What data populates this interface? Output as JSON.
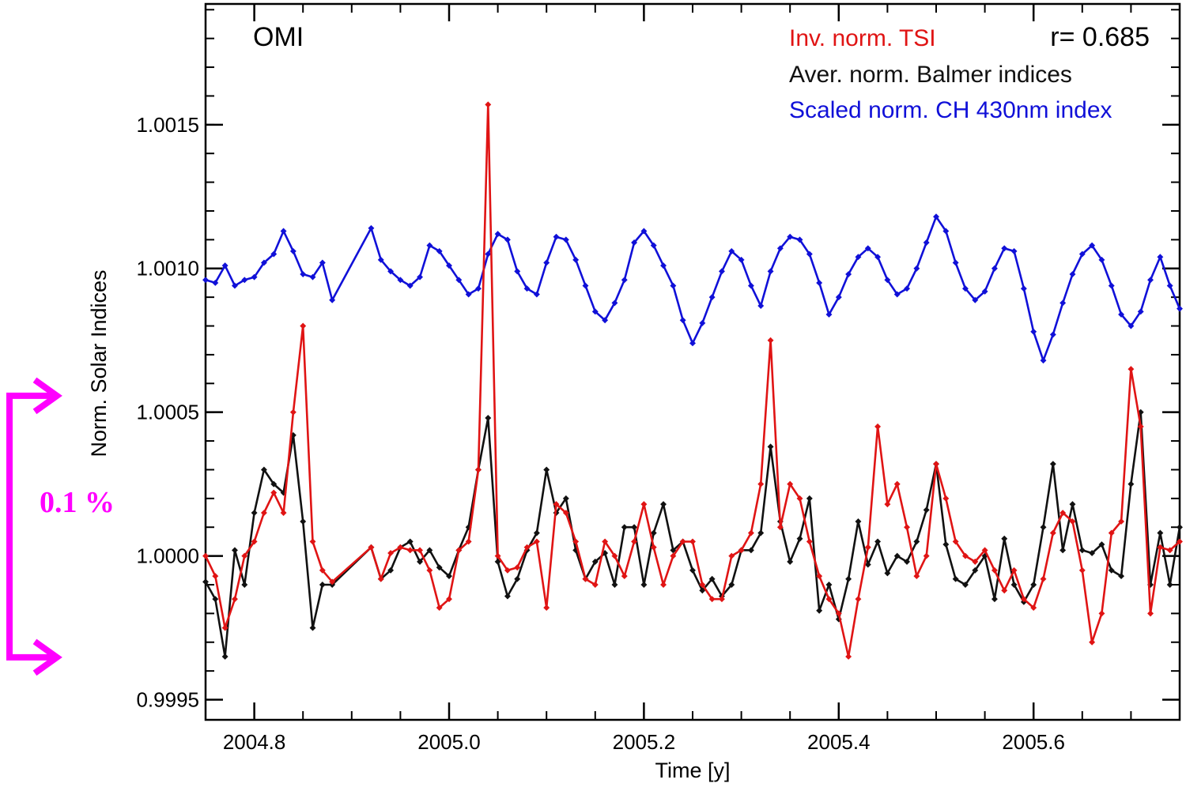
{
  "chart_data": {
    "type": "line",
    "panel_label": "OMI",
    "xlabel": "Time [y]",
    "ylabel": "Norm. Solar Indices",
    "xlim": [
      2004.75,
      2005.75
    ],
    "ylim": [
      0.99943,
      1.00192
    ],
    "x_ticks": [
      2004.8,
      2005.0,
      2005.2,
      2005.4,
      2005.6
    ],
    "x_tick_labels": [
      "2004.8",
      "2005.0",
      "2005.2",
      "2005.4",
      "2005.6"
    ],
    "y_ticks": [
      0.9995,
      1.0,
      1.0005,
      1.001,
      1.0015
    ],
    "y_tick_labels": [
      "0.9995",
      "1.0000",
      "1.0005",
      "1.0010",
      "1.0015"
    ],
    "correlation_label": "r=  0.685",
    "annotation": {
      "text": "0.1 %",
      "color": "#ff00ff",
      "y_top": 1.00059,
      "y_bottom": 0.99962
    },
    "series": [
      {
        "name": "Scaled norm. CH 430nm index",
        "color": "#1010d8",
        "x": [
          2004.75,
          2004.76,
          2004.77,
          2004.78,
          2004.79,
          2004.8,
          2004.81,
          2004.82,
          2004.83,
          2004.84,
          2004.85,
          2004.86,
          2004.87,
          2004.88,
          2004.92,
          2004.93,
          2004.94,
          2004.95,
          2004.96,
          2004.97,
          2004.98,
          2004.99,
          2005.0,
          2005.01,
          2005.02,
          2005.03,
          2005.04,
          2005.05,
          2005.06,
          2005.07,
          2005.08,
          2005.09,
          2005.1,
          2005.11,
          2005.12,
          2005.13,
          2005.14,
          2005.15,
          2005.16,
          2005.17,
          2005.18,
          2005.19,
          2005.2,
          2005.21,
          2005.22,
          2005.23,
          2005.24,
          2005.25,
          2005.26,
          2005.27,
          2005.28,
          2005.29,
          2005.3,
          2005.31,
          2005.32,
          2005.33,
          2005.34,
          2005.35,
          2005.36,
          2005.37,
          2005.38,
          2005.39,
          2005.4,
          2005.41,
          2005.42,
          2005.43,
          2005.44,
          2005.45,
          2005.46,
          2005.47,
          2005.48,
          2005.49,
          2005.5,
          2005.51,
          2005.52,
          2005.53,
          2005.54,
          2005.55,
          2005.56,
          2005.57,
          2005.58,
          2005.59,
          2005.6,
          2005.61,
          2005.62,
          2005.63,
          2005.64,
          2005.65,
          2005.66,
          2005.67,
          2005.68,
          2005.69,
          2005.7,
          2005.71,
          2005.72,
          2005.73,
          2005.74,
          2005.75
        ],
        "values": [
          0.99996,
          0.99995,
          1.00001,
          0.99994,
          0.99996,
          0.99997,
          1.00002,
          1.00005,
          1.00013,
          1.00006,
          0.99998,
          0.99997,
          1.00002,
          0.99989,
          1.00014,
          1.00003,
          0.99999,
          0.99996,
          0.99994,
          0.99997,
          1.00008,
          1.00006,
          1.00001,
          0.99996,
          0.99991,
          0.99993,
          1.00005,
          1.00012,
          1.0001,
          0.99999,
          0.99993,
          0.99991,
          1.00002,
          1.00011,
          1.0001,
          1.00003,
          0.99994,
          0.99985,
          0.99982,
          0.99988,
          0.99996,
          1.00009,
          1.00013,
          1.00008,
          1.00001,
          0.99994,
          0.99982,
          0.99974,
          0.99981,
          0.9999,
          0.99999,
          1.00006,
          1.00003,
          0.99994,
          0.99987,
          0.99999,
          1.00007,
          1.00011,
          1.0001,
          1.00005,
          0.99995,
          0.99984,
          0.9999,
          0.99998,
          1.00004,
          1.00007,
          1.00004,
          0.99996,
          0.99991,
          0.99993,
          1.0,
          1.00009,
          1.00018,
          1.00013,
          1.00002,
          0.99993,
          0.99989,
          0.99992,
          1.0,
          1.00007,
          1.00006,
          0.99993,
          0.99978,
          0.99968,
          0.99977,
          0.99988,
          0.99998,
          1.00005,
          1.00008,
          1.00003,
          0.99994,
          0.99984,
          0.9998,
          0.99985,
          0.99996,
          1.00004,
          0.99994,
          0.99986
        ],
        "offset": 0.001
      },
      {
        "name": "Aver. norm. Balmer indices",
        "color": "#111111",
        "x": [
          2004.75,
          2004.76,
          2004.77,
          2004.78,
          2004.79,
          2004.8,
          2004.81,
          2004.82,
          2004.83,
          2004.84,
          2004.85,
          2004.86,
          2004.87,
          2004.88,
          2004.92,
          2004.93,
          2004.94,
          2004.95,
          2004.96,
          2004.97,
          2004.98,
          2004.99,
          2005.0,
          2005.01,
          2005.02,
          2005.03,
          2005.04,
          2005.05,
          2005.06,
          2005.07,
          2005.08,
          2005.09,
          2005.1,
          2005.11,
          2005.12,
          2005.13,
          2005.14,
          2005.15,
          2005.16,
          2005.17,
          2005.18,
          2005.19,
          2005.2,
          2005.21,
          2005.22,
          2005.23,
          2005.24,
          2005.25,
          2005.26,
          2005.27,
          2005.28,
          2005.29,
          2005.3,
          2005.31,
          2005.32,
          2005.33,
          2005.34,
          2005.35,
          2005.36,
          2005.37,
          2005.38,
          2005.39,
          2005.4,
          2005.41,
          2005.42,
          2005.43,
          2005.44,
          2005.45,
          2005.46,
          2005.47,
          2005.48,
          2005.49,
          2005.5,
          2005.51,
          2005.52,
          2005.53,
          2005.54,
          2005.55,
          2005.56,
          2005.57,
          2005.58,
          2005.59,
          2005.6,
          2005.61,
          2005.62,
          2005.63,
          2005.64,
          2005.65,
          2005.66,
          2005.67,
          2005.68,
          2005.69,
          2005.7,
          2005.71,
          2005.72,
          2005.73,
          2005.74,
          2005.75
        ],
        "values": [
          0.99991,
          0.99985,
          0.99965,
          1.00002,
          0.9999,
          1.00015,
          1.0003,
          1.00025,
          1.00022,
          1.00042,
          1.00012,
          0.99975,
          0.9999,
          0.9999,
          1.00003,
          0.99992,
          0.99995,
          1.00003,
          1.00005,
          0.99998,
          1.00002,
          0.99996,
          0.99993,
          1.00002,
          1.0001,
          1.0003,
          1.00048,
          0.99998,
          0.99986,
          0.99992,
          1.00002,
          1.00008,
          1.0003,
          1.00015,
          1.0002,
          1.00002,
          0.99992,
          0.99998,
          1.00001,
          0.9999,
          1.0001,
          1.0001,
          0.9999,
          1.00008,
          1.00018,
          1.00002,
          1.00005,
          0.99995,
          0.99988,
          0.99992,
          0.99986,
          0.9999,
          1.00002,
          1.00002,
          1.00008,
          1.00038,
          1.00012,
          0.99998,
          1.00006,
          1.0002,
          0.99981,
          0.9999,
          0.99978,
          0.99992,
          1.00012,
          0.99997,
          1.00005,
          0.99994,
          1.0,
          0.99998,
          1.00005,
          1.00016,
          1.00032,
          1.00004,
          0.99992,
          0.9999,
          0.99995,
          1.0,
          0.99985,
          1.00006,
          0.9999,
          0.99984,
          0.9999,
          1.0001,
          1.00032,
          1.00002,
          1.00018,
          1.00002,
          1.00001,
          1.00004,
          0.99995,
          0.99993,
          1.00025,
          1.0005,
          0.9999,
          1.00008,
          0.9999,
          1.0001
        ],
        "offset": 0
      },
      {
        "name": "Inv. norm. TSI",
        "color": "#e01414",
        "x": [
          2004.75,
          2004.76,
          2004.77,
          2004.78,
          2004.79,
          2004.8,
          2004.81,
          2004.82,
          2004.83,
          2004.84,
          2004.85,
          2004.86,
          2004.87,
          2004.88,
          2004.92,
          2004.93,
          2004.94,
          2004.95,
          2004.96,
          2004.97,
          2004.98,
          2004.99,
          2005.0,
          2005.01,
          2005.02,
          2005.03,
          2005.04,
          2005.05,
          2005.06,
          2005.07,
          2005.08,
          2005.09,
          2005.1,
          2005.11,
          2005.12,
          2005.13,
          2005.14,
          2005.15,
          2005.16,
          2005.17,
          2005.18,
          2005.19,
          2005.2,
          2005.21,
          2005.22,
          2005.23,
          2005.24,
          2005.25,
          2005.26,
          2005.27,
          2005.28,
          2005.29,
          2005.3,
          2005.31,
          2005.32,
          2005.33,
          2005.34,
          2005.35,
          2005.36,
          2005.37,
          2005.38,
          2005.39,
          2005.4,
          2005.41,
          2005.42,
          2005.43,
          2005.44,
          2005.45,
          2005.46,
          2005.47,
          2005.48,
          2005.49,
          2005.5,
          2005.51,
          2005.52,
          2005.53,
          2005.54,
          2005.55,
          2005.56,
          2005.57,
          2005.58,
          2005.59,
          2005.6,
          2005.61,
          2005.62,
          2005.63,
          2005.64,
          2005.65,
          2005.66,
          2005.67,
          2005.68,
          2005.69,
          2005.7,
          2005.71,
          2005.72,
          2005.73,
          2005.74,
          2005.75
        ],
        "values": [
          1.0,
          0.99993,
          0.99975,
          0.99985,
          1.0,
          1.00005,
          1.00015,
          1.00022,
          1.00015,
          1.0005,
          1.0008,
          1.00005,
          0.99995,
          0.99991,
          1.00003,
          0.99992,
          1.00001,
          1.00003,
          1.00002,
          1.00002,
          0.99995,
          0.99982,
          0.99985,
          1.00002,
          1.00005,
          1.0003,
          1.00157,
          1.0,
          0.99995,
          0.99996,
          1.00003,
          1.00005,
          0.99982,
          1.00018,
          1.00015,
          1.00005,
          0.99992,
          0.9999,
          1.00005,
          1.0,
          0.99993,
          1.00005,
          1.00018,
          1.00003,
          0.9999,
          1.0,
          1.00005,
          1.00005,
          0.9999,
          0.99985,
          0.99985,
          1.0,
          1.00002,
          1.00008,
          1.00025,
          1.00075,
          1.0001,
          1.00025,
          1.0002,
          1.00005,
          0.99993,
          0.99985,
          0.9998,
          0.99965,
          0.99985,
          1.00003,
          1.00045,
          1.00018,
          1.00025,
          1.0001,
          0.99993,
          1.0,
          1.00032,
          1.0002,
          1.00005,
          1.0,
          0.99998,
          1.00002,
          0.99995,
          0.99988,
          0.99995,
          0.99985,
          0.99982,
          0.99992,
          1.00008,
          1.00015,
          1.00012,
          0.99995,
          0.9997,
          0.9998,
          1.00008,
          1.00012,
          1.00065,
          1.00045,
          0.9998,
          1.00003,
          1.00002,
          1.00005
        ],
        "offset": 0
      }
    ],
    "legend_position": "top-right",
    "legend": [
      "Inv. norm. TSI",
      "Aver. norm. Balmer indices",
      "Scaled norm. CH 430nm index"
    ]
  }
}
